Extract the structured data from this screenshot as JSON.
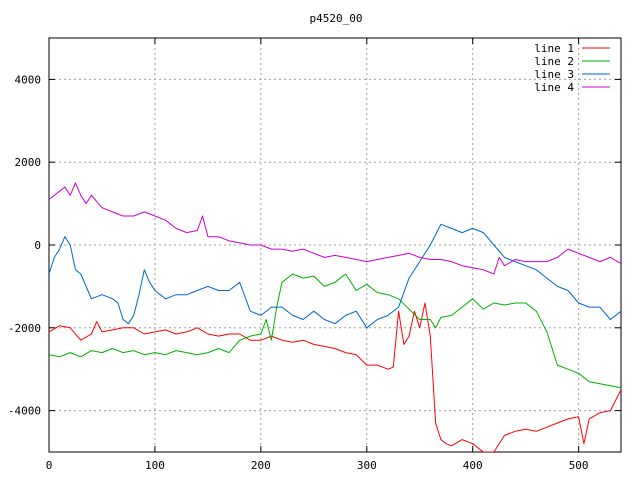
{
  "chart_data": {
    "type": "line",
    "title": "p4520_00",
    "xlabel": "",
    "ylabel": "",
    "xlim": [
      0,
      540
    ],
    "ylim": [
      -5000,
      5000
    ],
    "xticks": [
      0,
      100,
      200,
      300,
      400,
      500
    ],
    "yticks": [
      -4000,
      -2000,
      0,
      2000,
      4000
    ],
    "grid": true,
    "legend_position": "top-right",
    "series": [
      {
        "name": "line 1",
        "color": "#ff0000",
        "x": [
          0,
          10,
          20,
          30,
          40,
          45,
          50,
          60,
          70,
          80,
          90,
          100,
          110,
          120,
          130,
          140,
          150,
          160,
          170,
          180,
          190,
          200,
          210,
          220,
          230,
          240,
          250,
          260,
          270,
          280,
          290,
          300,
          310,
          320,
          325,
          330,
          335,
          340,
          345,
          350,
          355,
          360,
          365,
          370,
          375,
          380,
          390,
          400,
          410,
          420,
          430,
          440,
          450,
          460,
          470,
          480,
          490,
          500,
          505,
          510,
          520,
          530,
          540
        ],
        "y": [
          -2100,
          -1950,
          -2000,
          -2300,
          -2150,
          -1850,
          -2100,
          -2050,
          -2000,
          -2000,
          -2150,
          -2100,
          -2050,
          -2150,
          -2100,
          -2000,
          -2150,
          -2200,
          -2150,
          -2150,
          -2300,
          -2300,
          -2200,
          -2300,
          -2350,
          -2300,
          -2400,
          -2450,
          -2500,
          -2600,
          -2650,
          -2900,
          -2900,
          -3000,
          -2950,
          -1600,
          -2400,
          -2200,
          -1600,
          -2000,
          -1400,
          -2200,
          -4300,
          -4700,
          -4800,
          -4850,
          -4700,
          -4800,
          -5000,
          -5000,
          -4600,
          -4500,
          -4450,
          -4500,
          -4400,
          -4300,
          -4200,
          -4150,
          -4800,
          -4200,
          -4050,
          -4000,
          -3500
        ]
      },
      {
        "name": "line 2",
        "color": "#00b000",
        "x": [
          0,
          10,
          20,
          30,
          40,
          50,
          60,
          70,
          80,
          90,
          100,
          110,
          120,
          130,
          140,
          150,
          160,
          170,
          180,
          190,
          200,
          205,
          210,
          215,
          220,
          230,
          240,
          250,
          260,
          270,
          280,
          290,
          300,
          310,
          320,
          330,
          340,
          350,
          360,
          365,
          370,
          380,
          390,
          400,
          410,
          420,
          430,
          440,
          450,
          460,
          470,
          480,
          490,
          500,
          510,
          520,
          530,
          540
        ],
        "y": [
          -2650,
          -2700,
          -2600,
          -2700,
          -2550,
          -2600,
          -2500,
          -2600,
          -2550,
          -2650,
          -2600,
          -2650,
          -2550,
          -2600,
          -2650,
          -2600,
          -2500,
          -2600,
          -2300,
          -2200,
          -2150,
          -1800,
          -2300,
          -1500,
          -900,
          -700,
          -800,
          -750,
          -1000,
          -900,
          -700,
          -1100,
          -950,
          -1150,
          -1200,
          -1300,
          -1550,
          -1800,
          -1800,
          -2000,
          -1750,
          -1700,
          -1500,
          -1300,
          -1550,
          -1400,
          -1450,
          -1400,
          -1400,
          -1600,
          -2100,
          -2900,
          -3000,
          -3100,
          -3300,
          -3350,
          -3400,
          -3450
        ]
      },
      {
        "name": "line 3",
        "color": "#0066cc",
        "x": [
          0,
          5,
          10,
          15,
          20,
          25,
          30,
          40,
          50,
          60,
          65,
          70,
          75,
          80,
          85,
          90,
          95,
          100,
          110,
          120,
          130,
          140,
          150,
          160,
          170,
          180,
          190,
          200,
          210,
          220,
          230,
          240,
          250,
          260,
          270,
          280,
          290,
          300,
          310,
          320,
          330,
          340,
          350,
          360,
          370,
          380,
          390,
          400,
          410,
          420,
          430,
          440,
          450,
          460,
          470,
          480,
          490,
          500,
          510,
          520,
          530,
          540
        ],
        "y": [
          -700,
          -300,
          -100,
          200,
          0,
          -600,
          -700,
          -1300,
          -1200,
          -1300,
          -1400,
          -1800,
          -1900,
          -1700,
          -1200,
          -600,
          -900,
          -1100,
          -1300,
          -1200,
          -1200,
          -1100,
          -1000,
          -1100,
          -1100,
          -900,
          -1600,
          -1700,
          -1500,
          -1500,
          -1700,
          -1800,
          -1600,
          -1800,
          -1900,
          -1700,
          -1600,
          -2000,
          -1800,
          -1700,
          -1500,
          -800,
          -400,
          0,
          500,
          400,
          300,
          400,
          300,
          0,
          -300,
          -400,
          -500,
          -600,
          -800,
          -1000,
          -1100,
          -1400,
          -1500,
          -1500,
          -1800,
          -1600
        ]
      },
      {
        "name": "line 4",
        "color": "#cc00cc",
        "x": [
          0,
          10,
          15,
          20,
          25,
          30,
          35,
          40,
          50,
          60,
          70,
          80,
          90,
          100,
          110,
          120,
          130,
          140,
          145,
          150,
          160,
          170,
          180,
          190,
          200,
          210,
          220,
          230,
          240,
          250,
          260,
          270,
          280,
          290,
          300,
          310,
          320,
          330,
          340,
          350,
          360,
          370,
          380,
          390,
          400,
          410,
          420,
          425,
          430,
          440,
          450,
          460,
          470,
          480,
          490,
          500,
          510,
          520,
          530,
          540
        ],
        "y": [
          1100,
          1300,
          1400,
          1200,
          1500,
          1200,
          1000,
          1200,
          900,
          800,
          700,
          700,
          800,
          700,
          600,
          400,
          300,
          350,
          700,
          200,
          200,
          100,
          50,
          0,
          0,
          -100,
          -100,
          -150,
          -100,
          -200,
          -300,
          -250,
          -300,
          -350,
          -400,
          -350,
          -300,
          -250,
          -200,
          -300,
          -350,
          -350,
          -400,
          -500,
          -550,
          -600,
          -700,
          -300,
          -500,
          -350,
          -400,
          -400,
          -400,
          -300,
          -100,
          -200,
          -300,
          -400,
          -300,
          -450
        ]
      }
    ]
  }
}
